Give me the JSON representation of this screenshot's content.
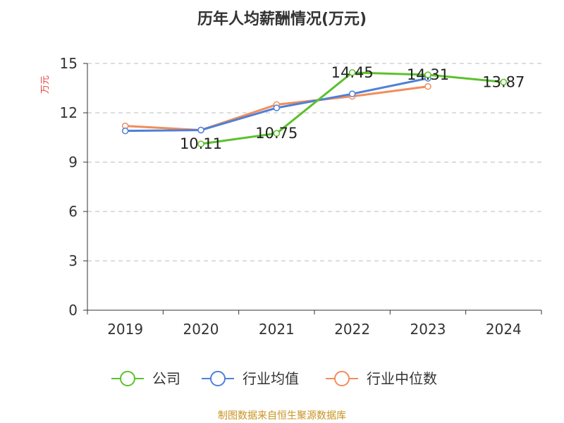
{
  "chart_data": {
    "type": "line",
    "title": "历年人均薪酬情况(万元)",
    "ylabel": "万元",
    "xlabel": "",
    "categories": [
      "2019",
      "2020",
      "2021",
      "2022",
      "2023",
      "2024"
    ],
    "ylim": [
      0,
      15
    ],
    "yticks": [
      "0",
      "3",
      "6",
      "9",
      "12",
      "15"
    ],
    "grid": true,
    "legend_position": "bottom",
    "series": [
      {
        "name": "公司",
        "color": "#5cc12c",
        "values": [
          null,
          10.11,
          10.75,
          14.45,
          14.31,
          13.87
        ],
        "labels": [
          null,
          "10.11",
          "10.75",
          "14.45",
          "14.31",
          "13.87"
        ]
      },
      {
        "name": "行业均值",
        "color": "#4f80d8",
        "values": [
          10.9,
          10.95,
          12.3,
          13.15,
          14.1,
          null
        ]
      },
      {
        "name": "行业中位数",
        "color": "#f28d5a",
        "values": [
          11.2,
          10.95,
          12.5,
          13.0,
          13.6,
          null
        ]
      }
    ]
  },
  "source": "制图数据来自恒生聚源数据库",
  "colors": {
    "source": "#c89320",
    "ylabel": "#e0403a",
    "grid": "#bbbbbb",
    "axis": "#333333"
  }
}
